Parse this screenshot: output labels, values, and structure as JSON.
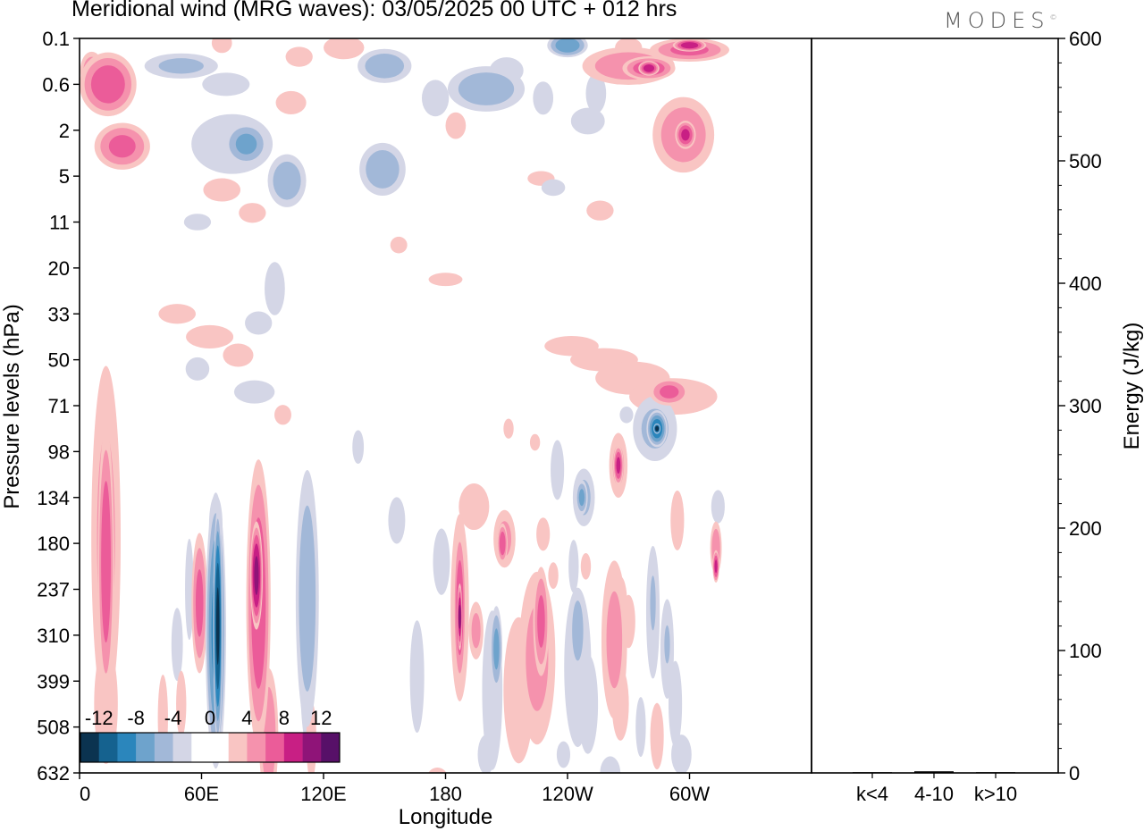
{
  "title": "Meridional wind (MRG waves):  03/05/2025  00 UTC  + 012 hrs",
  "brand": "MODES",
  "brand_mark": "©",
  "chart_data": [
    {
      "type": "heatmap",
      "variable": "Meridional wind (MRG waves)",
      "xlabel": "Longitude",
      "ylabel": "Pressure levels (hPa)",
      "x_ticks": [
        "0",
        "60E",
        "120E",
        "180",
        "120W",
        "60W"
      ],
      "y_ticks": [
        "0.1",
        "0.6",
        "2",
        "5",
        "11",
        "20",
        "33",
        "50",
        "71",
        "98",
        "134",
        "180",
        "237",
        "310",
        "399",
        "508",
        "632"
      ],
      "colorbar": {
        "labels": [
          "-12",
          "-8",
          "-4",
          "0",
          "4",
          "8",
          "12"
        ],
        "colors": [
          "#0b3350",
          "#15628f",
          "#2b86bc",
          "#6ea3cc",
          "#a2b8d8",
          "#d4d6e6",
          "#ffffff",
          "#ffffff",
          "#f9c5c3",
          "#f592ad",
          "#eb5c99",
          "#c81f84",
          "#8f1478",
          "#571068"
        ]
      },
      "blobs": [
        {
          "lon": 13,
          "p_idx": 10.9,
          "rlon": 8,
          "rp": 4.8,
          "v": 4
        },
        {
          "lon": 13,
          "p_idx": 11.4,
          "rlon": 4,
          "rp": 3.4,
          "v": 7
        },
        {
          "lon": 13,
          "p_idx": 14.5,
          "rlon": 7,
          "rp": 1.8,
          "v": 3
        },
        {
          "lon": 48,
          "p_idx": 13.2,
          "rlon": 4,
          "rp": 1.3,
          "v": -2
        },
        {
          "lon": 50,
          "p_idx": 14.5,
          "rlon": 3,
          "rp": 1,
          "v": 3
        },
        {
          "lon": 59,
          "p_idx": 12.3,
          "rlon": 4,
          "rp": 1.8,
          "v": 6
        },
        {
          "lon": 54,
          "p_idx": 12,
          "rlon": 3,
          "rp": 1.8,
          "v": -2
        },
        {
          "lon": 67,
          "p_idx": 12.9,
          "rlon": 5,
          "rp": 3.4,
          "v": -8
        },
        {
          "lon": 68,
          "p_idx": 12.8,
          "rlon": 2.2,
          "rp": 2.8,
          "v": -12
        },
        {
          "lon": 67,
          "p_idx": 10.6,
          "rlon": 4,
          "rp": 0.9,
          "v": -3
        },
        {
          "lon": 64,
          "p_idx": 10.3,
          "rlon": 9,
          "rp": 0.45,
          "v": -1.5
        },
        {
          "lon": 88,
          "p_idx": 12.3,
          "rlon": 6,
          "rp": 3.6,
          "v": 7
        },
        {
          "lon": 87,
          "p_idx": 11.7,
          "rlon": 3,
          "rp": 1.3,
          "v": 10
        },
        {
          "lon": 93,
          "p_idx": 15.2,
          "rlon": 5,
          "rp": 1.8,
          "v": 5
        },
        {
          "lon": 112,
          "p_idx": 12.2,
          "rlon": 6,
          "rp": 3.4,
          "v": -5
        },
        {
          "lon": 112,
          "p_idx": 13.8,
          "rlon": 5,
          "rp": 2.6,
          "v": -2
        },
        {
          "lon": 114,
          "p_idx": 15.3,
          "rlon": 3,
          "rp": 1.2,
          "v": 3
        },
        {
          "lon": 41,
          "p_idx": 14.8,
          "rlon": 3,
          "rp": 1.3,
          "v": 3
        },
        {
          "lon": 14,
          "p_idx": 1,
          "rlon": 14,
          "rp": 0.8,
          "v": 7
        },
        {
          "lon": 6,
          "p_idx": 0.7,
          "rlon": 6,
          "rp": 0.5,
          "v": 5
        },
        {
          "lon": 21,
          "p_idx": 2.35,
          "rlon": 14,
          "rp": 0.6,
          "v": 6
        },
        {
          "lon": 50,
          "p_idx": 0.6,
          "rlon": 20,
          "rp": 0.35,
          "v": -4
        },
        {
          "lon": 72,
          "p_idx": 1,
          "rlon": 14,
          "rp": 0.35,
          "v": -3
        },
        {
          "lon": 70,
          "p_idx": 0.1,
          "rlon": 6,
          "rp": 0.3,
          "v": 3
        },
        {
          "lon": 75,
          "p_idx": 2.3,
          "rlon": 24,
          "rp": 0.9,
          "v": -3
        },
        {
          "lon": 82,
          "p_idx": 2.3,
          "rlon": 11,
          "rp": 0.55,
          "v": -6
        },
        {
          "lon": 102,
          "p_idx": 3.1,
          "rlon": 10,
          "rp": 0.7,
          "v": -5
        },
        {
          "lon": 104,
          "p_idx": 1.4,
          "rlon": 9,
          "rp": 0.35,
          "v": 3
        },
        {
          "lon": 108,
          "p_idx": 0.4,
          "rlon": 8,
          "rp": 0.3,
          "v": 3
        },
        {
          "lon": 70,
          "p_idx": 3.3,
          "rlon": 11,
          "rp": 0.35,
          "v": 3
        },
        {
          "lon": 85,
          "p_idx": 3.8,
          "rlon": 8,
          "rp": 0.3,
          "v": 3
        },
        {
          "lon": 58,
          "p_idx": 4,
          "rlon": 8,
          "rp": 0.25,
          "v": -3
        },
        {
          "lon": 130,
          "p_idx": 0.2,
          "rlon": 12,
          "rp": 0.35,
          "v": 3
        },
        {
          "lon": 150,
          "p_idx": 0.6,
          "rlon": 14,
          "rp": 0.45,
          "v": -5
        },
        {
          "lon": 175,
          "p_idx": 1.3,
          "rlon": 8,
          "rp": 0.55,
          "v": -3
        },
        {
          "lon": 185,
          "p_idx": 1.9,
          "rlon": 6,
          "rp": 0.4,
          "v": 3
        },
        {
          "lon": 200,
          "p_idx": 1.1,
          "rlon": 20,
          "rp": 0.6,
          "v": -5
        },
        {
          "lon": 210,
          "p_idx": 0.7,
          "rlon": 10,
          "rp": 0.4,
          "v": -3
        },
        {
          "lon": 240,
          "p_idx": 0.15,
          "rlon": 10,
          "rp": 0.3,
          "v": -7
        },
        {
          "lon": 228,
          "p_idx": 1.3,
          "rlon": 6,
          "rp": 0.5,
          "v": -3
        },
        {
          "lon": 250,
          "p_idx": 1.8,
          "rlon": 10,
          "rp": 0.4,
          "v": -3
        },
        {
          "lon": 149,
          "p_idx": 2.85,
          "rlon": 12,
          "rp": 0.7,
          "v": -5
        },
        {
          "lon": 227,
          "p_idx": 3.05,
          "rlon": 8,
          "rp": 0.22,
          "v": 3
        },
        {
          "lon": 233,
          "p_idx": 3.25,
          "rlon": 7,
          "rp": 0.25,
          "v": -3
        },
        {
          "lon": 256,
          "p_idx": 3.75,
          "rlon": 8,
          "rp": 0.3,
          "v": 3
        },
        {
          "lon": 157,
          "p_idx": 4.5,
          "rlon": 5,
          "rp": 0.25,
          "v": 3
        },
        {
          "lon": 96,
          "p_idx": 5.45,
          "rlon": 6,
          "rp": 0.8,
          "v": -3
        },
        {
          "lon": 88,
          "p_idx": 6.2,
          "rlon": 8,
          "rp": 0.35,
          "v": -3
        },
        {
          "lon": 180,
          "p_idx": 5.25,
          "rlon": 10,
          "rp": 0.2,
          "v": 3
        },
        {
          "lon": 48,
          "p_idx": 6,
          "rlon": 11,
          "rp": 0.3,
          "v": 3
        },
        {
          "lon": 64,
          "p_idx": 6.5,
          "rlon": 14,
          "rp": 0.35,
          "v": 3
        },
        {
          "lon": 78,
          "p_idx": 6.9,
          "rlon": 9,
          "rp": 0.35,
          "v": 3
        },
        {
          "lon": 58,
          "p_idx": 7.2,
          "rlon": 7,
          "rp": 0.35,
          "v": -3
        },
        {
          "lon": 86,
          "p_idx": 7.7,
          "rlon": 12,
          "rp": 0.35,
          "v": -3
        },
        {
          "lon": 100,
          "p_idx": 8.2,
          "rlon": 5,
          "rp": 0.3,
          "v": 3
        },
        {
          "lon": 270,
          "p_idx": 0.6,
          "rlon": 24,
          "rp": 0.5,
          "v": 5
        },
        {
          "lon": 280,
          "p_idx": 0.65,
          "rlon": 13,
          "rp": 0.3,
          "v": 7
        },
        {
          "lon": 280,
          "p_idx": 0.65,
          "rlon": 5,
          "rp": 0.18,
          "v": 9
        },
        {
          "lon": 300,
          "p_idx": 0.25,
          "rlon": 20,
          "rp": 0.3,
          "v": 6
        },
        {
          "lon": 300,
          "p_idx": 0.15,
          "rlon": 8,
          "rp": 0.15,
          "v": 9
        },
        {
          "lon": 297,
          "p_idx": 2.1,
          "rlon": 16,
          "rp": 1,
          "v": 5
        },
        {
          "lon": 298,
          "p_idx": 2.1,
          "rlon": 5,
          "rp": 0.35,
          "v": 8
        },
        {
          "lon": 270,
          "p_idx": 0.2,
          "rlon": 8,
          "rp": 0.3,
          "v": 3
        },
        {
          "lon": 254,
          "p_idx": 1.2,
          "rlon": 6,
          "rp": 0.6,
          "v": -3
        },
        {
          "lon": 242,
          "p_idx": 6.7,
          "rlon": 16,
          "rp": 0.3,
          "v": 3
        },
        {
          "lon": 258,
          "p_idx": 7,
          "rlon": 20,
          "rp": 0.35,
          "v": 3
        },
        {
          "lon": 272,
          "p_idx": 7.4,
          "rlon": 22,
          "rp": 0.5,
          "v": 3
        },
        {
          "lon": 292,
          "p_idx": 7.8,
          "rlon": 26,
          "rp": 0.55,
          "v": 3
        },
        {
          "lon": 290,
          "p_idx": 7.7,
          "rlon": 10,
          "rp": 0.35,
          "v": 6
        },
        {
          "lon": 283,
          "p_idx": 8.5,
          "rlon": 12,
          "rp": 0.9,
          "v": -4
        },
        {
          "lon": 284,
          "p_idx": 8.5,
          "rlon": 5,
          "rp": 0.45,
          "v": -9
        },
        {
          "lon": 284,
          "p_idx": 8.5,
          "rlon": 1.6,
          "rp": 0.12,
          "v": -14
        },
        {
          "lon": 269,
          "p_idx": 8.2,
          "rlon": 4,
          "rp": 0.25,
          "v": -3
        },
        {
          "lon": 265,
          "p_idx": 9.3,
          "rlon": 5,
          "rp": 0.9,
          "v": 4
        },
        {
          "lon": 265,
          "p_idx": 9.3,
          "rlon": 2.5,
          "rp": 0.5,
          "v": 8
        },
        {
          "lon": 248,
          "p_idx": 10,
          "rlon": 6,
          "rp": 0.8,
          "v": -4
        },
        {
          "lon": 247,
          "p_idx": 10,
          "rlon": 3,
          "rp": 0.45,
          "v": -6
        },
        {
          "lon": 235,
          "p_idx": 9.4,
          "rlon": 4,
          "rp": 0.9,
          "v": -3
        },
        {
          "lon": 211,
          "p_idx": 8.5,
          "rlon": 3,
          "rp": 0.3,
          "v": 3
        },
        {
          "lon": 224,
          "p_idx": 8.8,
          "rlon": 3,
          "rp": 0.25,
          "v": 3
        },
        {
          "lon": 194,
          "p_idx": 10.2,
          "rlon": 9,
          "rp": 0.7,
          "v": 3
        },
        {
          "lon": 209,
          "p_idx": 10.9,
          "rlon": 6,
          "rp": 0.8,
          "v": 4
        },
        {
          "lon": 208,
          "p_idx": 11,
          "rlon": 2.5,
          "rp": 0.5,
          "v": 7
        },
        {
          "lon": 228,
          "p_idx": 10.8,
          "rlon": 4,
          "rp": 0.5,
          "v": 3
        },
        {
          "lon": 294,
          "p_idx": 10.5,
          "rlon": 4,
          "rp": 0.9,
          "v": 3
        },
        {
          "lon": 314,
          "p_idx": 10.2,
          "rlon": 4,
          "rp": 0.5,
          "v": -3
        },
        {
          "lon": 313,
          "p_idx": 11.1,
          "rlon": 3,
          "rp": 0.7,
          "v": 5
        },
        {
          "lon": 313,
          "p_idx": 11.5,
          "rlon": 1.6,
          "rp": 0.4,
          "v": 8
        },
        {
          "lon": 266,
          "p_idx": 12.3,
          "rlon": 4,
          "rp": 0.8,
          "v": 3
        },
        {
          "lon": 243,
          "p_idx": 11.5,
          "rlon": 3,
          "rp": 0.8,
          "v": -3
        },
        {
          "lon": 249,
          "p_idx": 11.5,
          "rlon": 3,
          "rp": 0.4,
          "v": 3
        },
        {
          "lon": 156,
          "p_idx": 10.5,
          "rlon": 5,
          "rp": 0.7,
          "v": -3
        },
        {
          "lon": 178,
          "p_idx": 11.4,
          "rlon": 5,
          "rp": 1,
          "v": -3
        },
        {
          "lon": 187,
          "p_idx": 12.4,
          "rlon": 5,
          "rp": 2.6,
          "v": 4
        },
        {
          "lon": 187,
          "p_idx": 12.4,
          "rlon": 3,
          "rp": 2,
          "v": 7
        },
        {
          "lon": 187,
          "p_idx": 12.6,
          "rlon": 1.2,
          "rp": 0.8,
          "v": 10
        },
        {
          "lon": 195,
          "p_idx": 12.9,
          "rlon": 4,
          "rp": 0.8,
          "v": 4
        },
        {
          "lon": 203,
          "p_idx": 14.2,
          "rlon": 6,
          "rp": 2.4,
          "v": -3
        },
        {
          "lon": 205,
          "p_idx": 13.3,
          "rlon": 3,
          "rp": 1.1,
          "v": -6
        },
        {
          "lon": 216,
          "p_idx": 14.2,
          "rlon": 9,
          "rp": 2.2,
          "v": 3
        },
        {
          "lon": 225,
          "p_idx": 13.5,
          "rlon": 10,
          "rp": 2.4,
          "v": 4
        },
        {
          "lon": 227,
          "p_idx": 12.7,
          "rlon": 4,
          "rp": 1.4,
          "v": 6
        },
        {
          "lon": 245,
          "p_idx": 13.7,
          "rlon": 8,
          "rp": 2.4,
          "v": -3
        },
        {
          "lon": 245,
          "p_idx": 12.9,
          "rlon": 4,
          "rp": 1.1,
          "v": -5
        },
        {
          "lon": 250,
          "p_idx": 14.5,
          "rlon": 6,
          "rp": 1.5,
          "v": -3
        },
        {
          "lon": 263,
          "p_idx": 13.1,
          "rlon": 7,
          "rp": 2.2,
          "v": 4
        },
        {
          "lon": 266,
          "p_idx": 14.5,
          "rlon": 5,
          "rp": 1.1,
          "v": 3
        },
        {
          "lon": 270,
          "p_idx": 12.7,
          "rlon": 4,
          "rp": 0.8,
          "v": 3
        },
        {
          "lon": 282,
          "p_idx": 12.5,
          "rlon": 4,
          "rp": 2,
          "v": -3
        },
        {
          "lon": 282,
          "p_idx": 12.3,
          "rlon": 2,
          "rp": 1,
          "v": -5
        },
        {
          "lon": 289,
          "p_idx": 13.3,
          "rlon": 4,
          "rp": 1.5,
          "v": -3
        },
        {
          "lon": 289,
          "p_idx": 13.2,
          "rlon": 2,
          "rp": 0.7,
          "v": -5
        },
        {
          "lon": 293,
          "p_idx": 14.5,
          "rlon": 4,
          "rp": 1.3,
          "v": -3
        },
        {
          "lon": 284,
          "p_idx": 15.2,
          "rlon": 4,
          "rp": 1,
          "v": 3
        },
        {
          "lon": 276,
          "p_idx": 15,
          "rlon": 3,
          "rp": 0.9,
          "v": -3
        },
        {
          "lon": 296,
          "p_idx": 15.6,
          "rlon": 6,
          "rp": 0.6,
          "v": -3
        },
        {
          "lon": 261,
          "p_idx": 16,
          "rlon": 6,
          "rp": 0.5,
          "v": -3
        },
        {
          "lon": 200,
          "p_idx": 15.6,
          "rlon": 5,
          "rp": 0.6,
          "v": -3
        },
        {
          "lon": 176,
          "p_idx": 16.1,
          "rlon": 6,
          "rp": 0.3,
          "v": 3
        },
        {
          "lon": 238,
          "p_idx": 15.6,
          "rlon": 4,
          "rp": 0.4,
          "v": -3
        },
        {
          "lon": 233,
          "p_idx": 11.7,
          "rlon": 3,
          "rp": 0.4,
          "v": 3
        },
        {
          "lon": 166,
          "p_idx": 13.9,
          "rlon": 5,
          "rp": 2,
          "v": -2
        },
        {
          "lon": 137,
          "p_idx": 8.9,
          "rlon": 4,
          "rp": 0.6,
          "v": -2
        }
      ],
      "energy_panel": {
        "ylabel": "Energy (J/kg)",
        "y_ticks": [
          "0",
          "100",
          "200",
          "300",
          "400",
          "500",
          "600"
        ],
        "ylim": [
          0,
          600
        ],
        "categories": [
          "k<4",
          "4-10",
          "k>10"
        ],
        "values": [
          0,
          1,
          0
        ]
      }
    }
  ]
}
